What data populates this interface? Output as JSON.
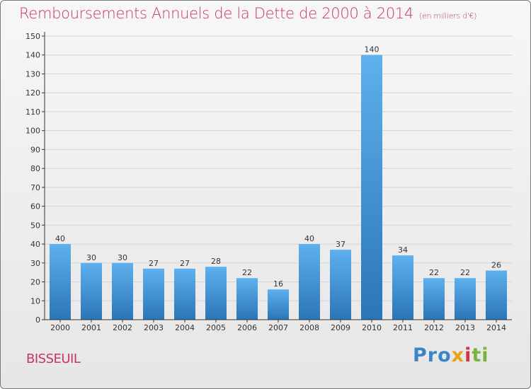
{
  "title": "Remboursements Annuels de la Dette de 2000 à 2014",
  "subtitle": "(en milliers d'€)",
  "commune": "BISSEUIL",
  "logo_text": "Proxiti",
  "colors": {
    "title": "#c8365f",
    "bar_top": "#5fb0ee",
    "bar_bottom": "#2a75b6"
  },
  "chart_data": {
    "type": "bar",
    "categories": [
      "2000",
      "2001",
      "2002",
      "2003",
      "2004",
      "2005",
      "2006",
      "2007",
      "2008",
      "2009",
      "2010",
      "2011",
      "2012",
      "2013",
      "2014"
    ],
    "values": [
      40,
      30,
      30,
      27,
      27,
      28,
      22,
      16,
      40,
      37,
      140,
      34,
      22,
      22,
      26
    ],
    "ylim": [
      0,
      150
    ],
    "yticks": [
      0,
      10,
      20,
      30,
      40,
      50,
      60,
      70,
      80,
      90,
      100,
      110,
      120,
      130,
      140,
      150
    ],
    "grid": true,
    "xlabel": "",
    "ylabel": ""
  }
}
